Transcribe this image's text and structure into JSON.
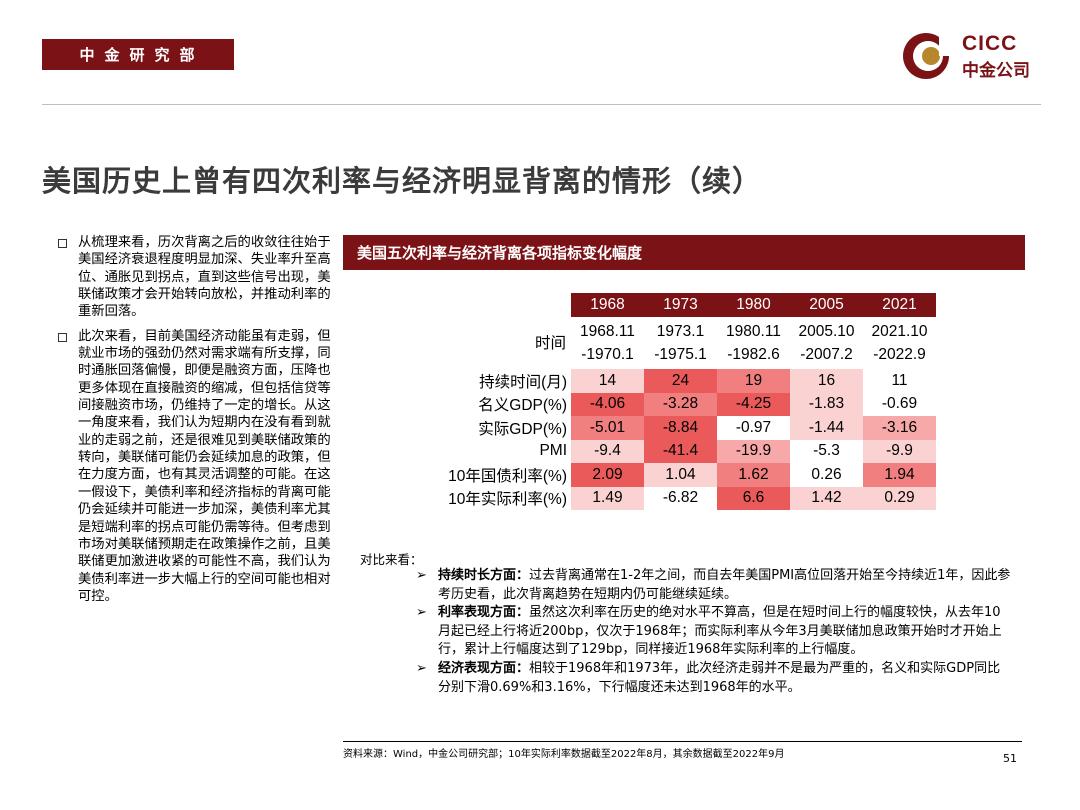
{
  "header": {
    "department": "中金研究部",
    "logo_en": "CICC",
    "logo_cn": "中金公司"
  },
  "title": "美国历史上曾有四次利率与经济明显背离的情形（续）",
  "left_bullets": [
    "从梳理来看，历次背离之后的收敛往往始于美国经济衰退程度明显加深、失业率升至高位、通胀见到拐点，直到这些信号出现，美联储政策才会开始转向放松，并推动利率的重新回落。",
    "此次来看，目前美国经济动能虽有走弱，但就业市场的强劲仍然对需求端有所支撑，同时通胀回落偏慢，即便是融资方面，压降也更多体现在直接融资的缩减，但包括信贷等间接融资市场，仍维持了一定的增长。从这一角度来看，我们认为短期内在没有看到就业的走弱之前，还是很难见到美联储政策的转向，美联储可能仍会延续加息的政策，但在力度方面，也有其灵活调整的可能。在这一假设下，美债利率和经济指标的背离可能仍会延续并可能进一步加深，美债利率尤其是短端利率的拐点可能仍需等待。但考虑到市场对美联储预期走在政策操作之前，且美联储更加激进收紧的可能性不高，我们认为美债利率进一步大幅上行的空间可能也相对可控。"
  ],
  "table_title": "美国五次利率与经济背离各项指标变化幅度",
  "table": {
    "years": [
      "1968",
      "1973",
      "1980",
      "2005",
      "2021"
    ],
    "time_label": "时间",
    "periods": [
      [
        "1968.11",
        "-1970.1"
      ],
      [
        "1973.1",
        "-1975.1"
      ],
      [
        "1980.11",
        "-1982.6"
      ],
      [
        "2005.10",
        "-2007.2"
      ],
      [
        "2021.10",
        "-2022.9"
      ]
    ],
    "rows": [
      {
        "label": "持续时间(月)",
        "cells": [
          "14",
          "24",
          "19",
          "16",
          "11"
        ],
        "shade": [
          1,
          4,
          3,
          1,
          0
        ]
      },
      {
        "label": "名义GDP(%)",
        "cells": [
          "-4.06",
          "-3.28",
          "-4.25",
          "-1.83",
          "-0.69"
        ],
        "shade": [
          4,
          3,
          4,
          1,
          0
        ]
      },
      {
        "label": "实际GDP(%)",
        "cells": [
          "-5.01",
          "-8.84",
          "-0.97",
          "-1.44",
          "-3.16"
        ],
        "shade": [
          3,
          4,
          0,
          1,
          2
        ]
      },
      {
        "label": "PMI",
        "cells": [
          "-9.4",
          "-41.4",
          "-19.9",
          "-5.3",
          "-9.9"
        ],
        "shade": [
          1,
          4,
          2,
          0,
          1
        ]
      },
      {
        "label": "10年国债利率(%)",
        "cells": [
          "2.09",
          "1.04",
          "1.62",
          "0.26",
          "1.94"
        ],
        "shade": [
          4,
          1,
          3,
          0,
          3
        ]
      },
      {
        "label": "10年实际利率(%)",
        "cells": [
          "1.49",
          "-6.82",
          "6.6",
          "1.42",
          "0.29"
        ],
        "shade": [
          1,
          0,
          4,
          1,
          1
        ]
      }
    ]
  },
  "comparison_label": "对比来看：",
  "comparison_items": [
    {
      "head": "持续时长方面：",
      "text": "过去背离通常在1-2年之间，而自去年美国PMI高位回落开始至今持续近1年，因此参考历史看，此次背离趋势在短期内仍可能继续延续。"
    },
    {
      "head": "利率表现方面：",
      "text": "虽然这次利率在历史的绝对水平不算高，但是在短时间上行的幅度较快，从去年10月起已经上行将近200bp，仅次于1968年；而实际利率从今年3月美联储加息政策开始时才开始上行，累计上行幅度达到了129bp，同样接近1968年实际利率的上行幅度。"
    },
    {
      "head": "经济表现方面：",
      "text": "相较于1968年和1973年，此次经济走弱并不是最为严重的，名义和实际GDP同比分别下滑0.69%和3.16%，下行幅度还未达到1968年的水平。"
    }
  ],
  "source": "资料来源：Wind，中金公司研究部；10年实际利率数据截至2022年8月，其余数据截至2022年9月",
  "page_number": "51",
  "colors": {
    "brand": "#7b1216",
    "heat_max": "#eb5a5a",
    "heat_min": "#ffffff"
  }
}
